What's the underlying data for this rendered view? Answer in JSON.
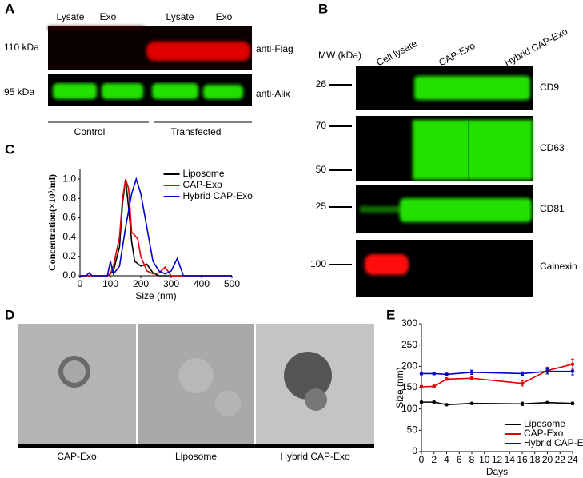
{
  "figure": {
    "a": {
      "label": "A",
      "lanes": [
        "Lysate",
        "Exo",
        "Lysate",
        "Exo"
      ],
      "markers": [
        "110 kDa",
        "95 kDa"
      ],
      "antibodies": [
        "anti-Flag",
        "anti-Alix"
      ],
      "groups": [
        "Control",
        "Transfected"
      ]
    },
    "b": {
      "label": "B",
      "mw": "MW (kDa)",
      "lanes": [
        "Cell lysate",
        "CAP-Exo",
        "Hybrid CAP-Exo"
      ],
      "markers": [
        "26",
        "70",
        "50",
        "25",
        "100"
      ],
      "proteins": [
        "CD9",
        "CD63",
        "CD81",
        "Calnexin"
      ]
    },
    "c": {
      "label": "C"
    },
    "d": {
      "label": "D",
      "captions": [
        "CAP-Exo",
        "Liposome",
        "Hybrid CAP-Exo"
      ]
    },
    "e": {
      "label": "E"
    }
  },
  "chart_data": [
    {
      "type": "line",
      "xlabel": "Size (nm)",
      "ylabel": "Concentration(×10⁵/ml)",
      "xlim": [
        0,
        500
      ],
      "xticks": [
        0,
        100,
        200,
        300,
        400,
        500
      ],
      "ylim": [
        0,
        1.1
      ],
      "yticks": [
        {
          "value": 0,
          "label": "0.0"
        },
        0.2,
        0.4,
        0.6,
        0.8,
        {
          "value": 1,
          "label": "1.0"
        }
      ],
      "legend": "upper right",
      "series": [
        {
          "name": "Liposome",
          "color": "#000000",
          "x": [
            0,
            90,
            100,
            110,
            130,
            140,
            150,
            160,
            170,
            180,
            200,
            220,
            240,
            260,
            280,
            300,
            500
          ],
          "values": [
            0,
            0,
            0.02,
            0.05,
            0.3,
            0.75,
            1.0,
            0.7,
            0.35,
            0.15,
            0.1,
            0.12,
            0.03,
            0,
            0,
            0,
            0
          ]
        },
        {
          "name": "CAP-Exo",
          "color": "#e00000",
          "x": [
            0,
            90,
            100,
            110,
            130,
            140,
            150,
            160,
            170,
            180,
            190,
            200,
            220,
            240,
            260,
            280,
            300,
            500
          ],
          "values": [
            0,
            0,
            0.02,
            0.1,
            0.4,
            0.8,
            1.0,
            0.9,
            0.45,
            0.42,
            0.38,
            0.2,
            0.05,
            0.02,
            0.03,
            0.09,
            0,
            0
          ]
        },
        {
          "name": "Hybrid CAP-Exo",
          "color": "#0000cc",
          "x": [
            0,
            20,
            30,
            40,
            90,
            100,
            110,
            130,
            150,
            170,
            185,
            200,
            220,
            240,
            260,
            280,
            300,
            320,
            340,
            500
          ],
          "values": [
            0,
            0,
            0.03,
            0,
            0,
            0.15,
            0.02,
            0.1,
            0.5,
            0.85,
            1.0,
            0.85,
            0.5,
            0.15,
            0.05,
            0.02,
            0.05,
            0.18,
            0,
            0
          ]
        }
      ]
    },
    {
      "type": "line",
      "xlabel": "Days",
      "ylabel": "Size (nm)",
      "xlim": [
        0,
        24
      ],
      "xticks": [
        0,
        2,
        4,
        6,
        8,
        10,
        12,
        14,
        16,
        18,
        20,
        22,
        24
      ],
      "ylim": [
        0,
        300
      ],
      "yticks": [
        0,
        50,
        100,
        150,
        200,
        250,
        300
      ],
      "legend": "lower right",
      "series": [
        {
          "name": "Liposome",
          "color": "#000000",
          "x": [
            0,
            2,
            4,
            8,
            16,
            20,
            24
          ],
          "values": [
            116,
            116,
            110,
            113,
            112,
            115,
            113
          ],
          "errors": [
            2,
            2,
            2,
            2,
            4,
            2,
            3
          ]
        },
        {
          "name": "CAP-Exo",
          "color": "#e00000",
          "x": [
            0,
            2,
            4,
            8,
            16,
            20,
            24
          ],
          "values": [
            152,
            153,
            170,
            172,
            160,
            190,
            205
          ],
          "errors": [
            3,
            3,
            3,
            4,
            6,
            8,
            12
          ]
        },
        {
          "name": "Hybrid CAP-Exo",
          "color": "#0000cc",
          "x": [
            0,
            2,
            4,
            8,
            16,
            20,
            24
          ],
          "values": [
            183,
            183,
            181,
            186,
            183,
            188,
            188
          ],
          "errors": [
            3,
            3,
            3,
            5,
            4,
            6,
            8
          ]
        }
      ]
    }
  ]
}
